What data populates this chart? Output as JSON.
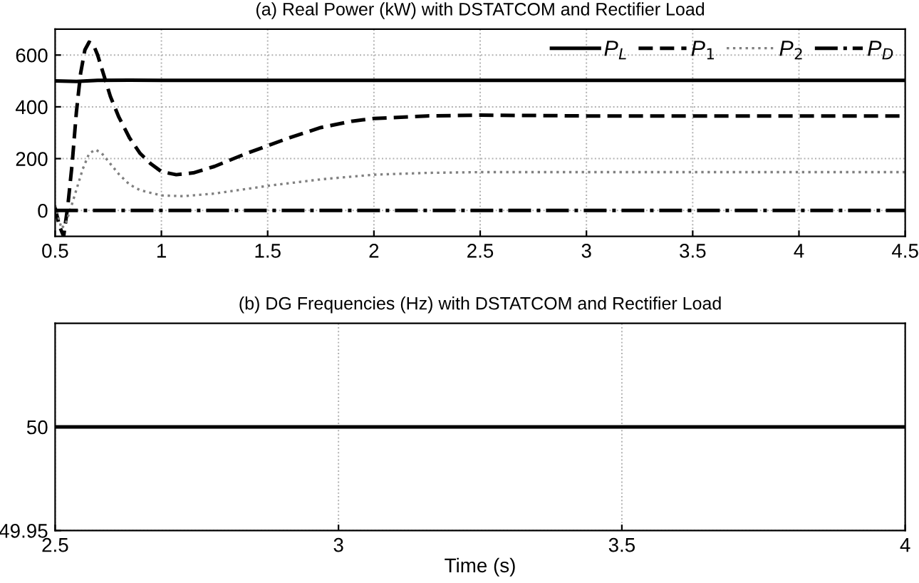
{
  "chart_data": [
    {
      "type": "line",
      "title": "(a) Real Power (kW) with DSTATCOM and Rectifier Load",
      "xlim": [
        0.5,
        4.5
      ],
      "ylim": [
        -100,
        700
      ],
      "xticks": [
        0.5,
        1,
        1.5,
        2,
        2.5,
        3,
        3.5,
        4,
        4.5
      ],
      "yticks": [
        0,
        200,
        400,
        600
      ],
      "grid": true,
      "legend": "top right",
      "marker": "none",
      "series": [
        {
          "name": "P$_{L}$",
          "color": "#000000",
          "line_style": "solid",
          "x": [
            0.5,
            0.6,
            0.7,
            0.85,
            1.0,
            4.5
          ],
          "values": [
            500,
            498,
            502,
            503,
            502,
            502
          ]
        },
        {
          "name": "P$_{1}$",
          "color": "#000000",
          "line_style": "dashed",
          "x": [
            0.5,
            0.52,
            0.54,
            0.56,
            0.58,
            0.6,
            0.62,
            0.64,
            0.66,
            0.68,
            0.7,
            0.73,
            0.76,
            0.8,
            0.85,
            0.9,
            0.95,
            1.0,
            1.07,
            1.15,
            1.25,
            1.4,
            1.5,
            1.6,
            1.75,
            1.9,
            2.0,
            2.25,
            2.5,
            3.0,
            3.5,
            4.0,
            4.5
          ],
          "values": [
            10,
            -60,
            -100,
            20,
            180,
            380,
            530,
            620,
            650,
            640,
            600,
            520,
            440,
            360,
            280,
            220,
            180,
            150,
            138,
            145,
            170,
            220,
            250,
            280,
            320,
            345,
            355,
            365,
            368,
            365,
            365,
            365,
            365
          ]
        },
        {
          "name": "P$_{2}$",
          "color": "#808080",
          "line_style": "dotted",
          "x": [
            0.5,
            0.52,
            0.53,
            0.55,
            0.57,
            0.6,
            0.63,
            0.66,
            0.69,
            0.72,
            0.76,
            0.8,
            0.85,
            0.9,
            1.0,
            1.1,
            1.25,
            1.5,
            1.75,
            2.0,
            2.25,
            2.5,
            3.0,
            3.5,
            4.0,
            4.5
          ],
          "values": [
            20,
            -40,
            -70,
            -50,
            0,
            80,
            160,
            220,
            235,
            220,
            180,
            140,
            100,
            78,
            58,
            55,
            65,
            95,
            120,
            138,
            145,
            148,
            148,
            148,
            148,
            148
          ]
        },
        {
          "name": "P$_{D}$",
          "color": "#000000",
          "line_style": "dashdot",
          "x": [
            0.5,
            4.5
          ],
          "values": [
            0,
            0
          ]
        }
      ]
    },
    {
      "type": "line",
      "title": "(b) DG Frequencies (Hz) with DSTATCOM and Rectifier Load",
      "xlabel": "Time (s)",
      "xlim": [
        2.5,
        4
      ],
      "ylim": [
        49.95,
        50.05
      ],
      "xticks": [
        2.5,
        3,
        3.5,
        4
      ],
      "yticks": [
        49.95,
        50
      ],
      "grid": true,
      "marker": "none",
      "series": [
        {
          "color": "#000000",
          "line_style": "solid",
          "x": [
            2.5,
            4
          ],
          "values": [
            50,
            50
          ]
        }
      ]
    }
  ]
}
